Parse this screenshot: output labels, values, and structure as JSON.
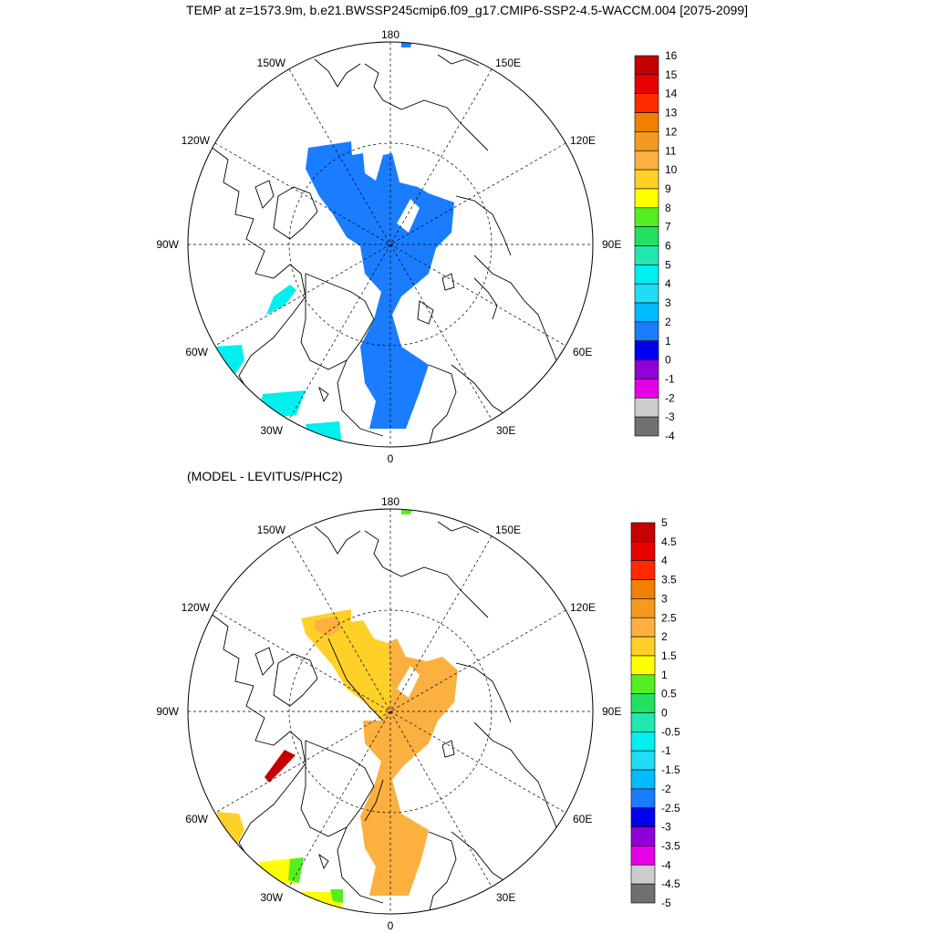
{
  "title": "TEMP at z=1573.9m, b.e21.BWSSP245cmip6.f09_g17.CMIP6-SSP2-4.5-WACCM.004 [2075-2099]",
  "subtitle": "(MODEL - LEVITUS/PHC2)",
  "longitude_labels": [
    "180",
    "150E",
    "120E",
    "90E",
    "60E",
    "30E",
    "0",
    "30W",
    "60W",
    "90W",
    "120W",
    "150W"
  ],
  "top_panel": {
    "colorbar_labels": [
      "16",
      "15",
      "14",
      "13",
      "12",
      "11",
      "10",
      "9",
      "8",
      "7",
      "6",
      "5",
      "4",
      "3",
      "2",
      "1",
      "0",
      "-1",
      "-2",
      "-3",
      "-4"
    ],
    "colorbar_colors": [
      "#c40000",
      "#e60000",
      "#ff2a00",
      "#f08000",
      "#f59a20",
      "#fbb040",
      "#ffd028",
      "#ffff00",
      "#55ee22",
      "#22e060",
      "#22e8b0",
      "#00f0f0",
      "#20dcf4",
      "#00bcff",
      "#1a7cff",
      "#0000ee",
      "#9000d8",
      "#e600e6",
      "#cccccc",
      "#707070"
    ],
    "fill_colors": {
      "main": "#1a7cff",
      "patch": "#00f0f0"
    }
  },
  "bottom_panel": {
    "colorbar_labels": [
      "5",
      "4.5",
      "4",
      "3.5",
      "3",
      "2.5",
      "2",
      "1.5",
      "1",
      "0.5",
      "0",
      "-0.5",
      "-1",
      "-1.5",
      "-2",
      "-2.5",
      "-3",
      "-3.5",
      "-4",
      "-4.5",
      "-5"
    ],
    "colorbar_colors": [
      "#c40000",
      "#e60000",
      "#ff2a00",
      "#f08000",
      "#f59a20",
      "#fbb040",
      "#ffd028",
      "#ffff00",
      "#55ee22",
      "#22e060",
      "#22e8b0",
      "#00f0f0",
      "#20dcf4",
      "#00bcff",
      "#1a7cff",
      "#0000ee",
      "#9000d8",
      "#e600e6",
      "#cccccc",
      "#707070"
    ],
    "fill_colors": {
      "main": "#fbb040",
      "warm": "#ffd028",
      "hot": "#c40000",
      "green": "#55ee22"
    }
  }
}
